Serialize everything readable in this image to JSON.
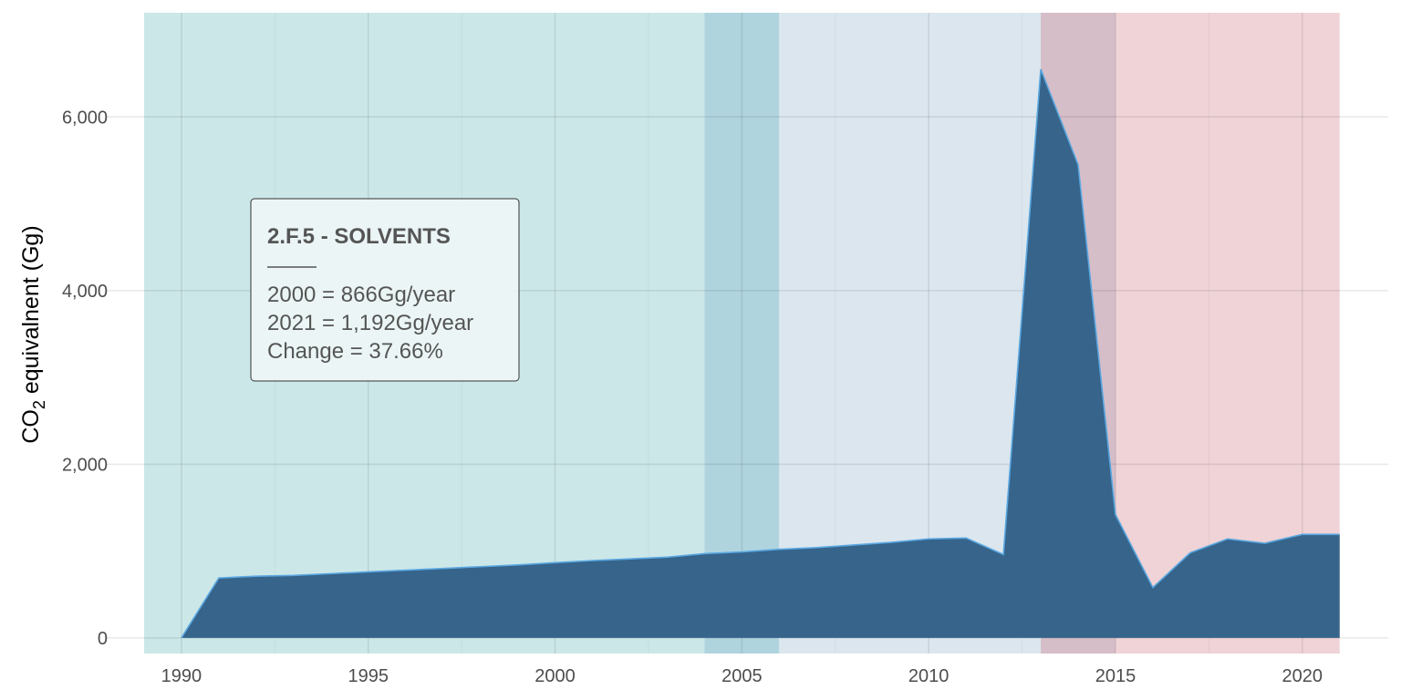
{
  "chart_data": {
    "type": "area",
    "ylabel": "CO2 equivalnent (Gg)",
    "ylabel_parts": {
      "main": "CO",
      "sub": "2",
      "rest": " equivalnent (Gg)"
    },
    "xlim": [
      1988,
      2022.3
    ],
    "ylim": [
      -180,
      7200
    ],
    "x_ticks": [
      1990,
      1995,
      2000,
      2005,
      2010,
      2015,
      2020
    ],
    "x_tick_labels": [
      "1990",
      "1995",
      "2000",
      "2005",
      "2010",
      "2015",
      "2020"
    ],
    "y_ticks": [
      0,
      2000,
      4000,
      6000
    ],
    "y_tick_labels": [
      "0",
      "2,000",
      "4,000",
      "6,000"
    ],
    "grid": true,
    "fill_color": "#36648b",
    "line_color": "#5aa7e0",
    "background_bands": [
      {
        "x0": 1989,
        "x1": 2004,
        "color": "#cce7e8"
      },
      {
        "x0": 2004,
        "x1": 2006,
        "color": "#b0d4de"
      },
      {
        "x0": 2006,
        "x1": 2013,
        "color": "#dbe6ee"
      },
      {
        "x0": 2013,
        "x1": 2015,
        "color": "#d5bec8"
      },
      {
        "x0": 2015,
        "x1": 2021,
        "color": "#efd3d6"
      }
    ],
    "x": [
      1990,
      1991,
      1992,
      1993,
      1994,
      1995,
      1996,
      1997,
      1998,
      1999,
      2000,
      2001,
      2002,
      2003,
      2004,
      2005,
      2006,
      2007,
      2008,
      2009,
      2010,
      2011,
      2012,
      2013,
      2014,
      2015,
      2016,
      2017,
      2018,
      2019,
      2020,
      2021
    ],
    "values": [
      0,
      690,
      710,
      720,
      740,
      760,
      780,
      800,
      820,
      840,
      866,
      890,
      910,
      930,
      970,
      990,
      1020,
      1040,
      1070,
      1100,
      1140,
      1150,
      960,
      6550,
      5450,
      1420,
      580,
      980,
      1140,
      1090,
      1192,
      1192
    ],
    "annotation": {
      "title": "2.F.5 - SOLVENTS",
      "lines": [
        "2000 = 866Gg/year",
        "2021 = 1,192Gg/year",
        "Change = 37.66%"
      ]
    }
  }
}
